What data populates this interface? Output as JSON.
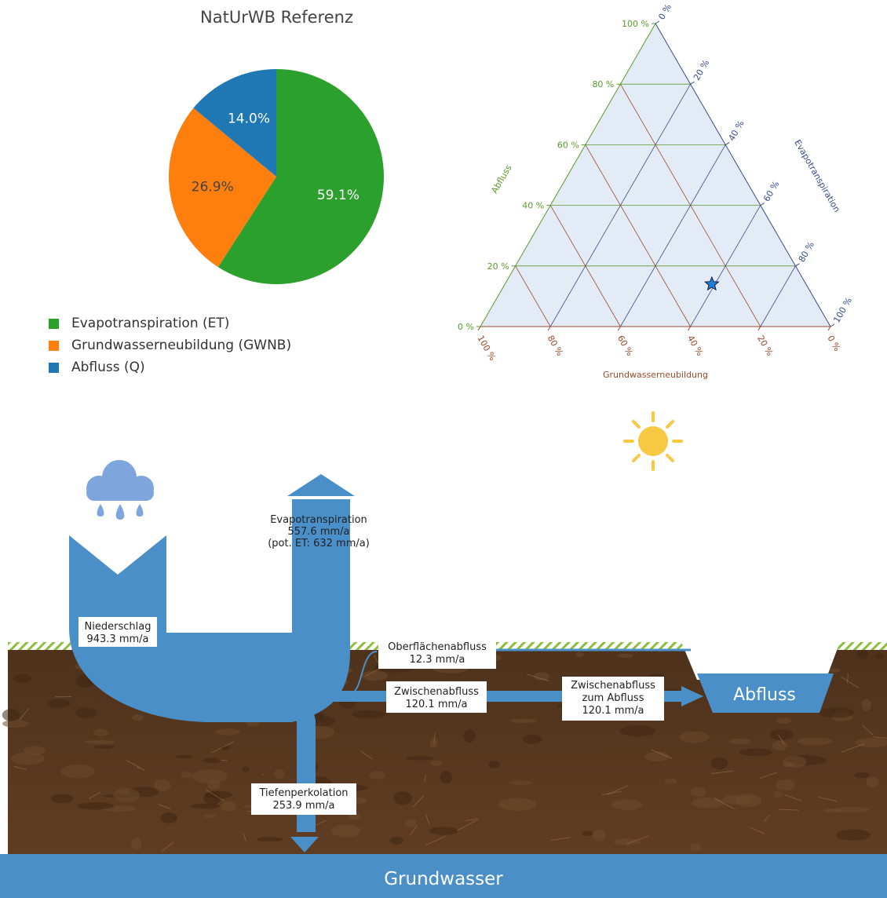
{
  "pie": {
    "title": "NatUrWB Referenz",
    "legend": [
      {
        "label": "Evapotranspiration (ET)",
        "color": "#2ca02c"
      },
      {
        "label": "Grundwasserneubildung (GWNB)",
        "color": "#ff7f0e"
      },
      {
        "label": "Abfluss (Q)",
        "color": "#1f77b4"
      }
    ]
  },
  "ternary": {
    "left_axis_label": "Abfluss",
    "right_axis_label": "Evapotranspiration",
    "bottom_axis_label": "Grundwasserneubildung",
    "left_ticks": [
      "0 %",
      "20 %",
      "40 %",
      "60 %",
      "80 %",
      "100 %"
    ],
    "right_ticks": [
      "0 %",
      "20 %",
      "40 %",
      "60 %",
      "80 %",
      "100 %"
    ],
    "bottom_ticks": [
      "100 %",
      "80 %",
      "60 %",
      "40 %",
      "20 %",
      "0 %"
    ],
    "colors": {
      "abfluss": "#5a9a2a",
      "evapotranspiration": "#3a4a8a",
      "grundwasserneubildung": "#9a4a2a",
      "fill": "#e3ebf6"
    }
  },
  "chart_data": [
    {
      "type": "pie",
      "title": "NatUrWB Referenz",
      "categories": [
        "Evapotranspiration (ET)",
        "Grundwasserneubildung (GWNB)",
        "Abfluss (Q)"
      ],
      "values": [
        59.1,
        26.9,
        14.0
      ],
      "labels": [
        "59.1%",
        "26.9%",
        "14.0%"
      ],
      "colors": [
        "#2ca02c",
        "#ff7f0e",
        "#1f77b4"
      ],
      "legend": "bottom-left"
    },
    {
      "type": "scatter",
      "subtype": "ternary",
      "axes": [
        "Abfluss",
        "Evapotranspiration",
        "Grundwasserneubildung"
      ],
      "points": [
        {
          "Abfluss": 14.0,
          "Evapotranspiration": 59.1,
          "Grundwasserneubildung": 26.9
        }
      ],
      "marker": "star",
      "range": [
        0,
        100
      ]
    }
  ],
  "diagram": {
    "niederschlag": {
      "title": "Niederschlag",
      "value": "943.3 mm/a"
    },
    "evapotranspiration": {
      "title": "Evapotranspiration",
      "value": "557.6 mm/a",
      "note": "(pot. ET: 632 mm/a)"
    },
    "oberflaechenabfluss": {
      "title": "Oberflächenabfluss",
      "value": "12.3 mm/a"
    },
    "zwischenabfluss": {
      "title": "Zwischenabfluss",
      "value": "120.1 mm/a"
    },
    "zwischenabfluss_zum_abfluss": {
      "title1": "Zwischenabfluss",
      "title2": "zum Abfluss",
      "value": "120.1 mm/a"
    },
    "tiefenperkolation": {
      "title": "Tiefenperkolation",
      "value": "253.9 mm/a"
    },
    "abfluss_label": "Abfluss",
    "grundwasser_label": "Grundwasser",
    "icons": [
      "sun-icon",
      "rain-cloud-icon"
    ],
    "colors": {
      "water": "#4a8fc8",
      "soil": "#5b3a21",
      "grass": "#8bbf3b",
      "groundwater": "#4a8fc8"
    }
  }
}
